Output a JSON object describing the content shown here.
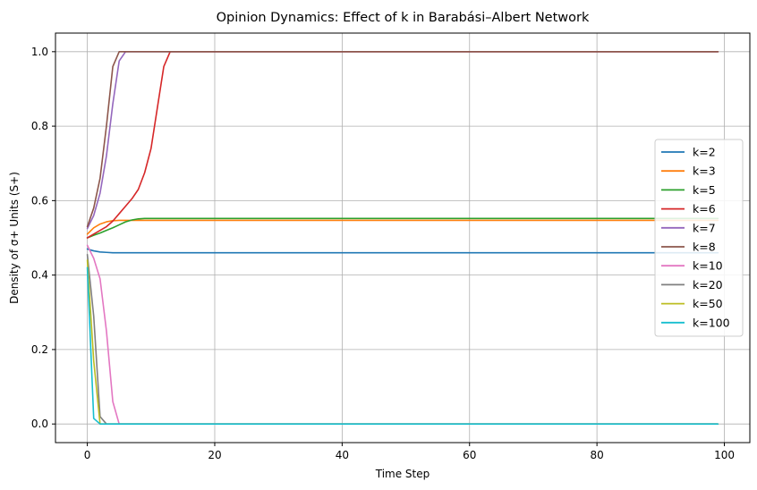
{
  "chart_data": {
    "type": "line",
    "title": "Opinion Dynamics: Effect of k in Barabási–Albert Network",
    "xlabel": "Time Step",
    "ylabel": "Density of σ+ Units (S+)",
    "xlim": [
      -5,
      104
    ],
    "ylim": [
      -0.05,
      1.05
    ],
    "xticks": [
      0,
      20,
      40,
      60,
      80,
      100
    ],
    "yticks": [
      0.0,
      0.2,
      0.4,
      0.6,
      0.8,
      1.0
    ],
    "xtick_labels": [
      "0",
      "20",
      "40",
      "60",
      "80",
      "100"
    ],
    "ytick_labels": [
      "0.0",
      "0.2",
      "0.4",
      "0.6",
      "0.8",
      "1.0"
    ],
    "grid": true,
    "legend_position": "center-right",
    "x_end": 99,
    "series": [
      {
        "name": "k=2",
        "color": "#1f77b4",
        "points": [
          [
            0,
            0.47
          ],
          [
            1,
            0.465
          ],
          [
            2,
            0.462
          ],
          [
            3,
            0.461
          ],
          [
            4,
            0.46
          ]
        ],
        "final": 0.46
      },
      {
        "name": "k=3",
        "color": "#ff7f0e",
        "points": [
          [
            0,
            0.51
          ],
          [
            1,
            0.527
          ],
          [
            2,
            0.537
          ],
          [
            3,
            0.543
          ],
          [
            4,
            0.546
          ],
          [
            5,
            0.547
          ]
        ],
        "final": 0.547
      },
      {
        "name": "k=5",
        "color": "#2ca02c",
        "points": [
          [
            0,
            0.5
          ],
          [
            1,
            0.507
          ],
          [
            2,
            0.513
          ],
          [
            3,
            0.52
          ],
          [
            4,
            0.527
          ],
          [
            5,
            0.535
          ],
          [
            6,
            0.543
          ],
          [
            7,
            0.548
          ],
          [
            8,
            0.551
          ],
          [
            9,
            0.552
          ]
        ],
        "final": 0.552
      },
      {
        "name": "k=6",
        "color": "#d62728",
        "points": [
          [
            0,
            0.5
          ],
          [
            1,
            0.51
          ],
          [
            2,
            0.52
          ],
          [
            3,
            0.53
          ],
          [
            4,
            0.545
          ],
          [
            5,
            0.565
          ],
          [
            6,
            0.585
          ],
          [
            7,
            0.605
          ],
          [
            8,
            0.63
          ],
          [
            9,
            0.675
          ],
          [
            10,
            0.74
          ],
          [
            11,
            0.85
          ],
          [
            12,
            0.96
          ],
          [
            13,
            1.0
          ]
        ],
        "final": 1.0
      },
      {
        "name": "k=7",
        "color": "#9467bd",
        "points": [
          [
            0,
            0.525
          ],
          [
            1,
            0.56
          ],
          [
            2,
            0.62
          ],
          [
            3,
            0.72
          ],
          [
            4,
            0.86
          ],
          [
            5,
            0.975
          ],
          [
            6,
            1.0
          ]
        ],
        "final": 1.0
      },
      {
        "name": "k=8",
        "color": "#8c564b",
        "points": [
          [
            0,
            0.53
          ],
          [
            1,
            0.58
          ],
          [
            2,
            0.66
          ],
          [
            3,
            0.8
          ],
          [
            4,
            0.96
          ],
          [
            5,
            1.0
          ]
        ],
        "final": 1.0
      },
      {
        "name": "k=10",
        "color": "#e377c2",
        "points": [
          [
            0,
            0.48
          ],
          [
            1,
            0.445
          ],
          [
            2,
            0.39
          ],
          [
            3,
            0.25
          ],
          [
            4,
            0.06
          ],
          [
            5,
            0.0
          ]
        ],
        "final": 0.0
      },
      {
        "name": "k=20",
        "color": "#7f7f7f",
        "points": [
          [
            0,
            0.455
          ],
          [
            1,
            0.29
          ],
          [
            2,
            0.02
          ],
          [
            3,
            0.0
          ]
        ],
        "final": 0.0
      },
      {
        "name": "k=50",
        "color": "#bcbd22",
        "points": [
          [
            0,
            0.44
          ],
          [
            1,
            0.17
          ],
          [
            2,
            0.0
          ]
        ],
        "final": 0.0
      },
      {
        "name": "k=100",
        "color": "#17becf",
        "points": [
          [
            0,
            0.42
          ],
          [
            1,
            0.015
          ],
          [
            2,
            0.0
          ]
        ],
        "final": 0.0
      }
    ]
  }
}
